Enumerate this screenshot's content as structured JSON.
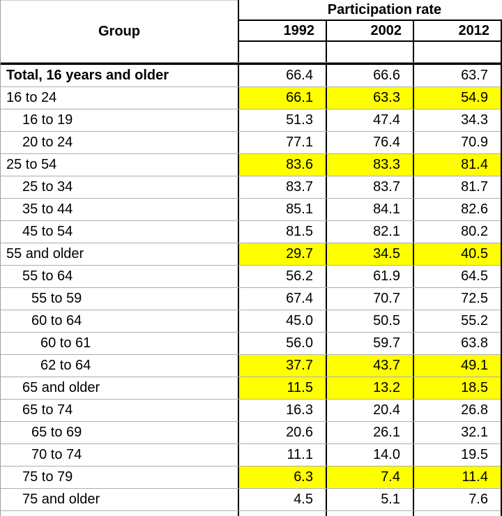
{
  "colors": {
    "highlight": "#ffff00",
    "line_black": "#000000",
    "grid_gray": "#adadad",
    "edge_gray": "#9e9e9e",
    "text": "#000000",
    "background": "#ffffff"
  },
  "chart_data": {
    "type": "table",
    "group_column_header": "Group",
    "span_header": "Participation rate",
    "year_headers": [
      "1992",
      "2002",
      "2012"
    ],
    "rows": [
      {
        "group": "Total, 16 years and older",
        "indent": 0,
        "bold": true,
        "highlighted": false,
        "values": [
          "66.4",
          "66.6",
          "63.7"
        ]
      },
      {
        "group": "16 to 24",
        "indent": 0,
        "bold": false,
        "highlighted": true,
        "values": [
          "66.1",
          "63.3",
          "54.9"
        ]
      },
      {
        "group": "16 to 19",
        "indent": 1,
        "bold": false,
        "highlighted": false,
        "values": [
          "51.3",
          "47.4",
          "34.3"
        ]
      },
      {
        "group": "20 to 24",
        "indent": 1,
        "bold": false,
        "highlighted": false,
        "values": [
          "77.1",
          "76.4",
          "70.9"
        ]
      },
      {
        "group": "25 to 54",
        "indent": 0,
        "bold": false,
        "highlighted": true,
        "values": [
          "83.6",
          "83.3",
          "81.4"
        ]
      },
      {
        "group": "25 to 34",
        "indent": 1,
        "bold": false,
        "highlighted": false,
        "values": [
          "83.7",
          "83.7",
          "81.7"
        ]
      },
      {
        "group": "35 to 44",
        "indent": 1,
        "bold": false,
        "highlighted": false,
        "values": [
          "85.1",
          "84.1",
          "82.6"
        ]
      },
      {
        "group": "45 to 54",
        "indent": 1,
        "bold": false,
        "highlighted": false,
        "values": [
          "81.5",
          "82.1",
          "80.2"
        ]
      },
      {
        "group": "55 and older",
        "indent": 0,
        "bold": false,
        "highlighted": true,
        "values": [
          "29.7",
          "34.5",
          "40.5"
        ]
      },
      {
        "group": "55 to 64",
        "indent": 1,
        "bold": false,
        "highlighted": false,
        "values": [
          "56.2",
          "61.9",
          "64.5"
        ]
      },
      {
        "group": "55 to 59",
        "indent": 2,
        "bold": false,
        "highlighted": false,
        "values": [
          "67.4",
          "70.7",
          "72.5"
        ]
      },
      {
        "group": "60 to 64",
        "indent": 2,
        "bold": false,
        "highlighted": false,
        "values": [
          "45.0",
          "50.5",
          "55.2"
        ]
      },
      {
        "group": "60 to 61",
        "indent": 3,
        "bold": false,
        "highlighted": false,
        "values": [
          "56.0",
          "59.7",
          "63.8"
        ]
      },
      {
        "group": "62 to 64",
        "indent": 3,
        "bold": false,
        "highlighted": true,
        "values": [
          "37.7",
          "43.7",
          "49.1"
        ]
      },
      {
        "group": "65 and older",
        "indent": 1,
        "bold": false,
        "highlighted": true,
        "values": [
          "11.5",
          "13.2",
          "18.5"
        ]
      },
      {
        "group": "65 to 74",
        "indent": 1,
        "bold": false,
        "highlighted": false,
        "values": [
          "16.3",
          "20.4",
          "26.8"
        ]
      },
      {
        "group": "65 to 69",
        "indent": 2,
        "bold": false,
        "highlighted": false,
        "values": [
          "20.6",
          "26.1",
          "32.1"
        ]
      },
      {
        "group": "70 to 74",
        "indent": 2,
        "bold": false,
        "highlighted": false,
        "values": [
          "11.1",
          "14.0",
          "19.5"
        ]
      },
      {
        "group": "75 to 79",
        "indent": 1,
        "bold": false,
        "highlighted": true,
        "values": [
          "6.3",
          "7.4",
          "11.4"
        ]
      },
      {
        "group": "75 and older",
        "indent": 1,
        "bold": false,
        "highlighted": false,
        "values": [
          "4.5",
          "5.1",
          "7.6"
        ]
      }
    ]
  }
}
